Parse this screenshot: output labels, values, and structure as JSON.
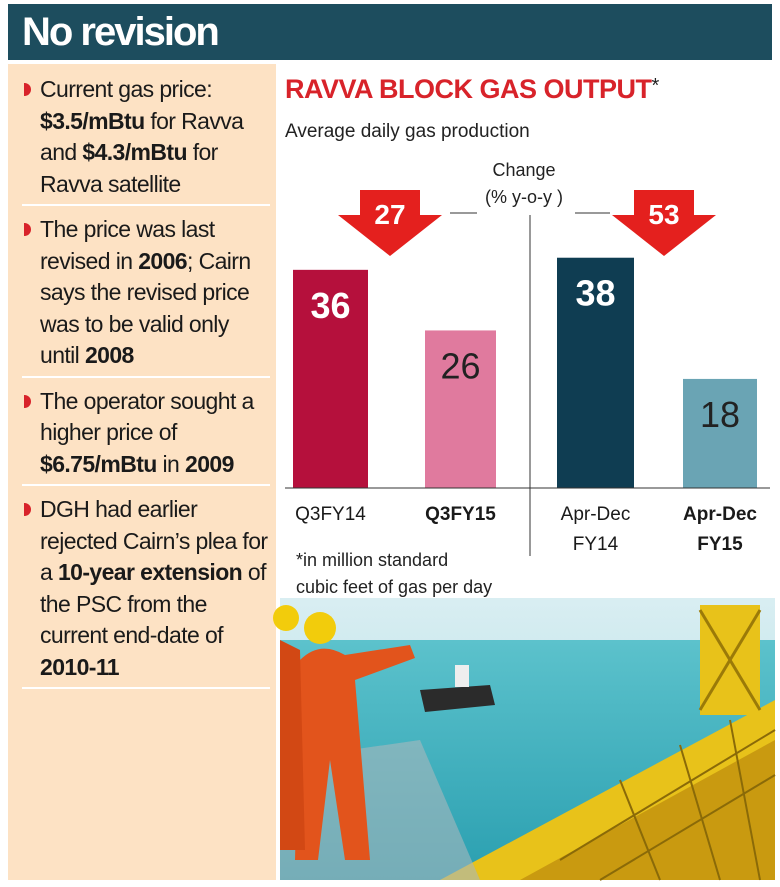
{
  "header": {
    "title": "No revision"
  },
  "notes": [
    [
      {
        "text": "Current gas price: "
      },
      {
        "text": "$3.5/mBtu",
        "bold": true
      },
      {
        "text": " for Ravva and "
      },
      {
        "text": "$4.3/mBtu",
        "bold": true
      },
      {
        "text": " for Ravva satellite"
      }
    ],
    [
      {
        "text": "The price was last revised in "
      },
      {
        "text": "2006",
        "bold": true
      },
      {
        "text": "; Cairn says the revised price was to be valid only until "
      },
      {
        "text": "2008",
        "bold": true
      }
    ],
    [
      {
        "text": "The operator sought a higher price of "
      },
      {
        "text": "$6.75/mBtu",
        "bold": true
      },
      {
        "text": " in "
      },
      {
        "text": "2009",
        "bold": true
      }
    ],
    [
      {
        "text": "DGH had earlier rejected Cairn’s plea for a "
      },
      {
        "text": "10-year extension",
        "bold": true
      },
      {
        "text": " of the PSC from the current end-date of "
      },
      {
        "text": "2010-11",
        "bold": true
      }
    ]
  ],
  "chart_data": {
    "type": "bar",
    "title": "RAVVA BLOCK GAS OUTPUT",
    "title_marker": "*",
    "subtitle": "Average daily gas production",
    "change_label": [
      "Change",
      "(% y-o-y )"
    ],
    "categories": [
      "Q3FY14",
      "Q3FY15",
      "Apr-Dec FY14",
      "Apr-Dec FY15"
    ],
    "bold_categories": [
      false,
      true,
      false,
      true
    ],
    "values": [
      36,
      26,
      38,
      18
    ],
    "colors": [
      "#b5103c",
      "#e07a9e",
      "#0f3d52",
      "#6aa4b4"
    ],
    "value_label_colors": [
      "#ffffff",
      "#222222",
      "#ffffff",
      "#222222"
    ],
    "changes": [
      27,
      53
    ],
    "change_color": "#e4201e",
    "footnote": [
      "*in million standard",
      "cubic feet of gas per day"
    ]
  }
}
